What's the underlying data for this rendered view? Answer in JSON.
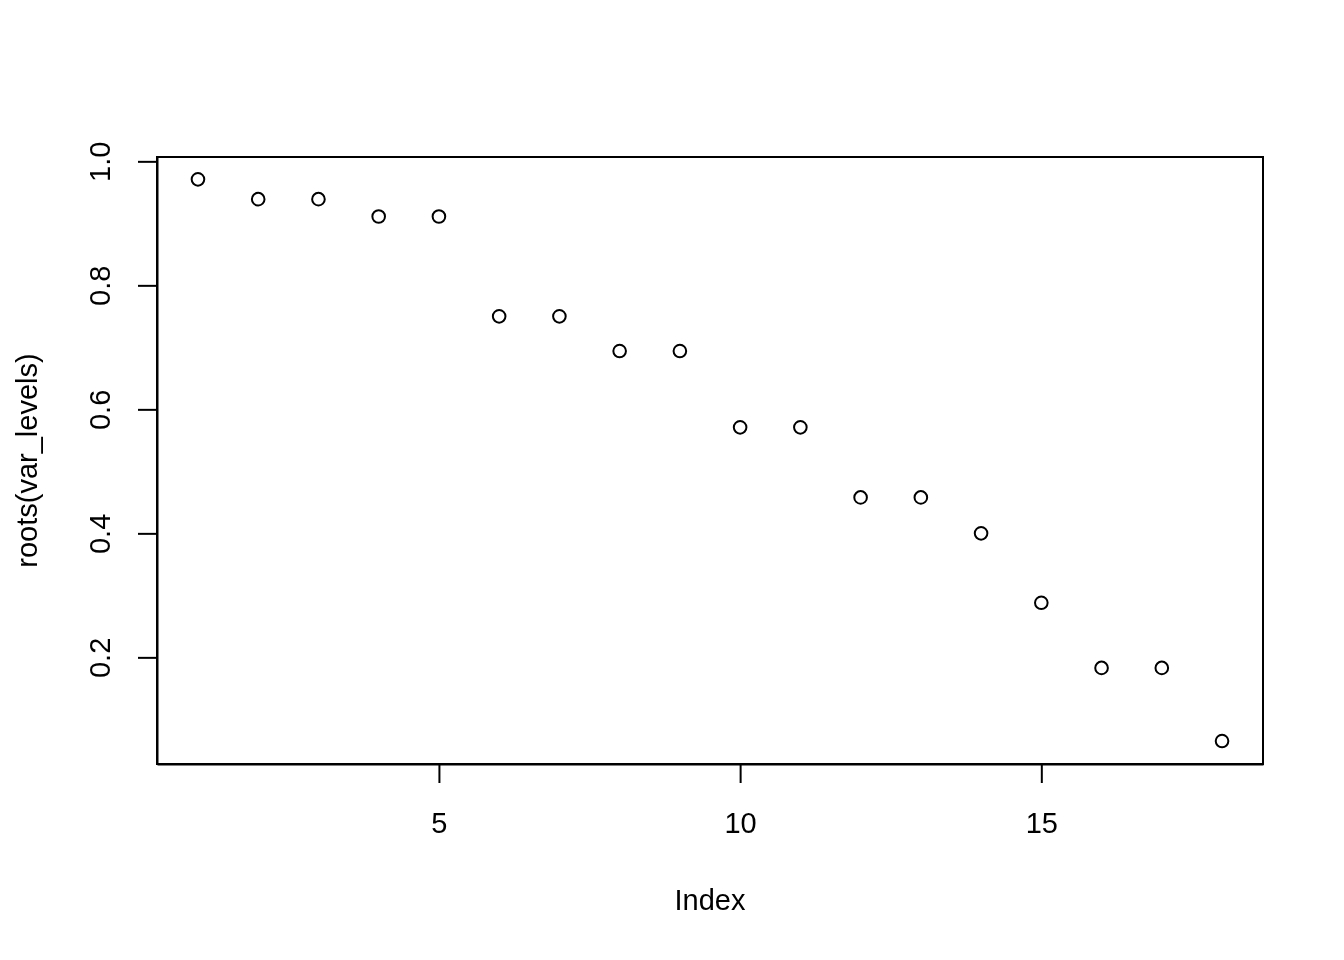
{
  "chart_data": {
    "type": "scatter",
    "xlabel": "Index",
    "ylabel": "roots(var_levels)",
    "x": [
      1,
      2,
      3,
      4,
      5,
      6,
      7,
      8,
      9,
      10,
      11,
      12,
      13,
      14,
      15,
      16,
      17,
      18
    ],
    "values": [
      0.971,
      0.939,
      0.939,
      0.911,
      0.911,
      0.75,
      0.75,
      0.694,
      0.694,
      0.571,
      0.571,
      0.458,
      0.458,
      0.4,
      0.288,
      0.183,
      0.183,
      0.065
    ],
    "color": "#000000",
    "marker": "circle",
    "xlim": [
      0.32,
      18.68
    ],
    "ylim": [
      0.028,
      1.007
    ],
    "xticks": [
      5,
      10,
      15
    ],
    "yticks": [
      0.2,
      0.4,
      0.6,
      0.8,
      {
        "value": 1,
        "label": "1.0"
      }
    ]
  }
}
